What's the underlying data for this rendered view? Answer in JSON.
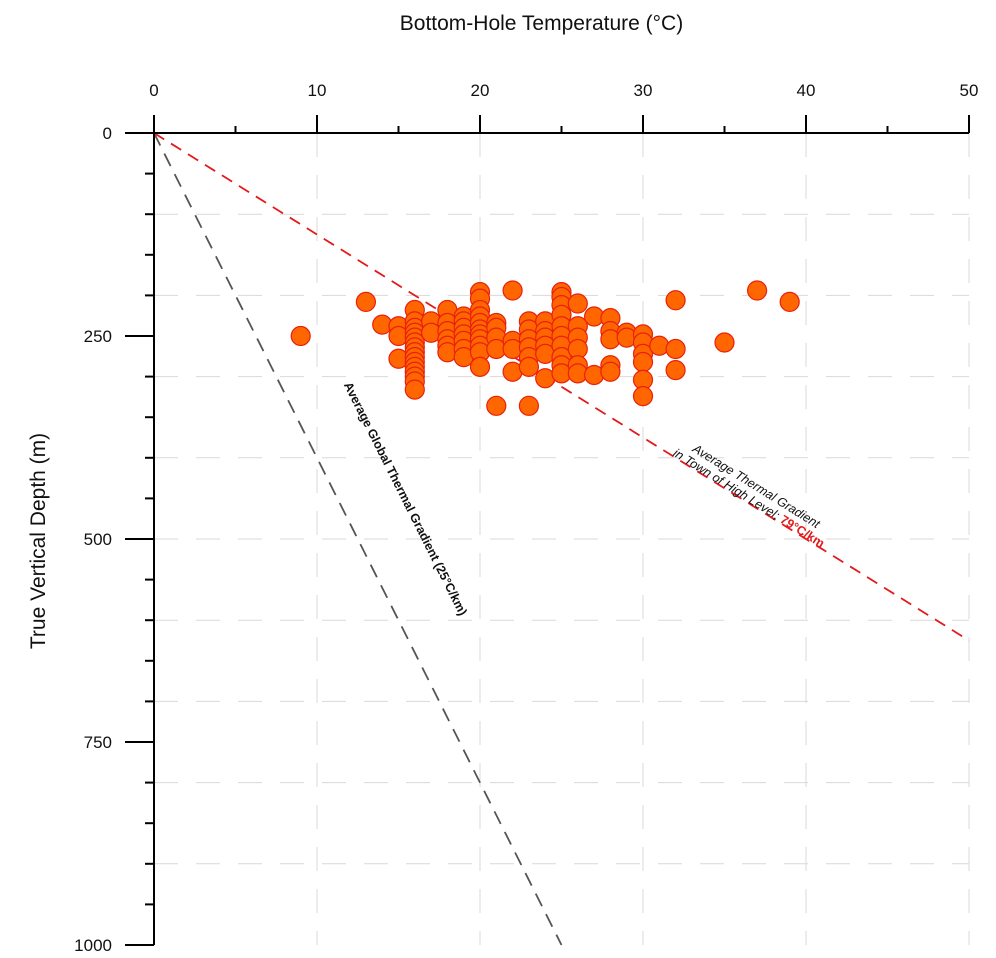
{
  "chart_data": {
    "type": "scatter",
    "xlabel": "Bottom-Hole Temperature (°C)",
    "ylabel": "True Vertical Depth (m)",
    "x_axis_position": "top",
    "y_axis_inverted": true,
    "xlim": [
      0,
      50
    ],
    "ylim": [
      0,
      1000
    ],
    "x_ticks": [
      0,
      10,
      20,
      30,
      40,
      50
    ],
    "y_ticks": [
      0,
      250,
      500,
      750,
      1000
    ],
    "grid": true,
    "marker_color": "#FF6600",
    "marker_edge_color": "#E8200C",
    "series": [
      {
        "points": [
          [
            9,
            250
          ],
          [
            13,
            208
          ],
          [
            14,
            236
          ],
          [
            15,
            238
          ],
          [
            15,
            250
          ],
          [
            15,
            278
          ],
          [
            16,
            218
          ],
          [
            16,
            232
          ],
          [
            16,
            240
          ],
          [
            16,
            246
          ],
          [
            16,
            252
          ],
          [
            16,
            258
          ],
          [
            16,
            264
          ],
          [
            16,
            270
          ],
          [
            16,
            276
          ],
          [
            16,
            282
          ],
          [
            16,
            288
          ],
          [
            16,
            294
          ],
          [
            16,
            300
          ],
          [
            16,
            306
          ],
          [
            16,
            316
          ],
          [
            17,
            232
          ],
          [
            17,
            246
          ],
          [
            18,
            218
          ],
          [
            18,
            234
          ],
          [
            18,
            244
          ],
          [
            18,
            254
          ],
          [
            18,
            262
          ],
          [
            18,
            270
          ],
          [
            19,
            226
          ],
          [
            19,
            232
          ],
          [
            19,
            240
          ],
          [
            19,
            248
          ],
          [
            19,
            256
          ],
          [
            19,
            266
          ],
          [
            19,
            276
          ],
          [
            20,
            196
          ],
          [
            20,
            204
          ],
          [
            20,
            218
          ],
          [
            20,
            226
          ],
          [
            20,
            234
          ],
          [
            20,
            242
          ],
          [
            20,
            248
          ],
          [
            20,
            254
          ],
          [
            20,
            262
          ],
          [
            20,
            270
          ],
          [
            20,
            288
          ],
          [
            21,
            234
          ],
          [
            21,
            240
          ],
          [
            21,
            252
          ],
          [
            21,
            266
          ],
          [
            21,
            336
          ],
          [
            22,
            194
          ],
          [
            22,
            256
          ],
          [
            22,
            266
          ],
          [
            22,
            294
          ],
          [
            23,
            232
          ],
          [
            23,
            242
          ],
          [
            23,
            254
          ],
          [
            23,
            264
          ],
          [
            23,
            276
          ],
          [
            23,
            288
          ],
          [
            23,
            336
          ],
          [
            24,
            232
          ],
          [
            24,
            244
          ],
          [
            24,
            252
          ],
          [
            24,
            262
          ],
          [
            24,
            272
          ],
          [
            24,
            302
          ],
          [
            25,
            196
          ],
          [
            25,
            202
          ],
          [
            25,
            212
          ],
          [
            25,
            224
          ],
          [
            25,
            238
          ],
          [
            25,
            250
          ],
          [
            25,
            262
          ],
          [
            25,
            276
          ],
          [
            25,
            286
          ],
          [
            25,
            296
          ],
          [
            26,
            210
          ],
          [
            26,
            238
          ],
          [
            26,
            252
          ],
          [
            26,
            266
          ],
          [
            26,
            286
          ],
          [
            26,
            296
          ],
          [
            27,
            226
          ],
          [
            27,
            298
          ],
          [
            28,
            228
          ],
          [
            28,
            244
          ],
          [
            28,
            254
          ],
          [
            28,
            286
          ],
          [
            28,
            294
          ],
          [
            29,
            246
          ],
          [
            29,
            252
          ],
          [
            30,
            248
          ],
          [
            30,
            258
          ],
          [
            30,
            272
          ],
          [
            30,
            282
          ],
          [
            30,
            304
          ],
          [
            30,
            324
          ],
          [
            31,
            262
          ],
          [
            32,
            206
          ],
          [
            32,
            266
          ],
          [
            32,
            292
          ],
          [
            35,
            258
          ],
          [
            37,
            194
          ],
          [
            39,
            208
          ]
        ]
      }
    ],
    "reference_lines": [
      {
        "label": "Average Global Thermal Gradient (25°C/km)",
        "color": "#555555",
        "style": "dashed",
        "from": [
          0,
          0
        ],
        "to": [
          25,
          1000
        ]
      },
      {
        "label_line1": "Average Thermal Gradient",
        "label_line2_prefix": "in Town of High Level; ",
        "label_value": "79°C/km",
        "color": "#E31A1C",
        "style": "dashed",
        "from": [
          0,
          0
        ],
        "to": [
          50,
          625
        ]
      }
    ]
  }
}
